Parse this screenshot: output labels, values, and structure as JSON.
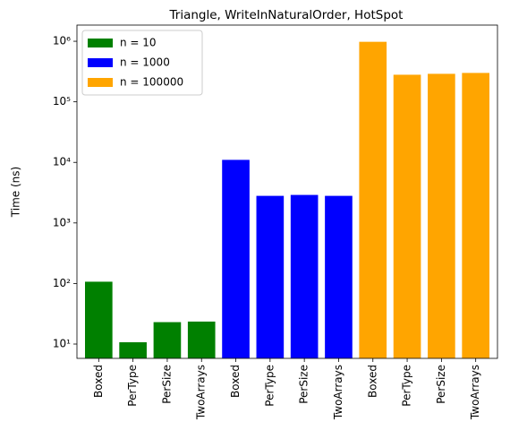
{
  "chart_data": {
    "type": "bar",
    "title": "Triangle, WriteInNaturalOrder, HotSpot",
    "y_label": "Time (ns)",
    "categories": [
      "Boxed",
      "PerType",
      "PerSize",
      "TwoArrays",
      "Boxed",
      "PerType",
      "PerSize",
      "TwoArrays",
      "Boxed",
      "PerType",
      "PerSize",
      "TwoArrays"
    ],
    "series": [
      {
        "name": "n = 10",
        "color": "#008000",
        "values": [
          107,
          10.7,
          23,
          23.5,
          null,
          null,
          null,
          null,
          null,
          null,
          null,
          null
        ]
      },
      {
        "name": "n = 1000",
        "color": "#0000ff",
        "values": [
          null,
          null,
          null,
          null,
          11000,
          2800,
          2900,
          2800,
          null,
          null,
          null,
          null
        ]
      },
      {
        "name": "n = 100000",
        "color": "#ffa500",
        "values": [
          null,
          null,
          null,
          null,
          null,
          null,
          null,
          null,
          980000,
          280000,
          290000,
          300000
        ]
      }
    ],
    "yscale": "log",
    "ylim": [
      5.8,
      1850000
    ],
    "yticks": [
      {
        "value": 10,
        "label": "10¹"
      },
      {
        "value": 100,
        "label": "10²"
      },
      {
        "value": 1000,
        "label": "10³"
      },
      {
        "value": 10000,
        "label": "10⁴"
      },
      {
        "value": 100000,
        "label": "10⁵"
      },
      {
        "value": 1000000,
        "label": "10⁶"
      }
    ],
    "legend": "upper left",
    "grid": false
  }
}
